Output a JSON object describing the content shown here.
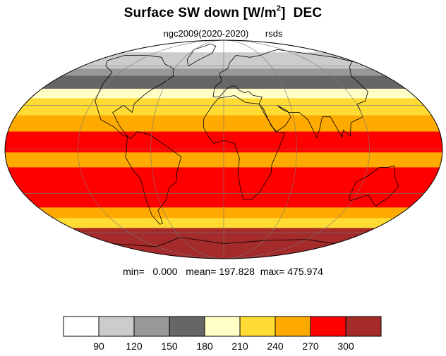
{
  "title": {
    "main": "Surface SW down [W/m",
    "sup": "2",
    "close": "]",
    "month": "DEC"
  },
  "subtitle": {
    "run": "ngc2009(2020-2020)",
    "variable": "rsds"
  },
  "stats": {
    "min_label": "min=",
    "min": "0.000",
    "mean_label": "mean=",
    "mean": "197.828",
    "max_label": "max=",
    "max": "475.974"
  },
  "colorbar": {
    "levels": [
      "90",
      "120",
      "150",
      "180",
      "210",
      "240",
      "270",
      "300"
    ],
    "colors": [
      "#ffffff",
      "#cccccc",
      "#999999",
      "#666666",
      "#ffffc6",
      "#ffdb33",
      "#ffaa00",
      "#ff0000",
      "#a52a2a"
    ]
  },
  "map": {
    "projection": "mollweide",
    "bands": [
      {
        "lat_from": 90,
        "lat_to": 73,
        "color": "#ffffff"
      },
      {
        "lat_from": 73,
        "lat_to": 58,
        "color": "#cccccc"
      },
      {
        "lat_from": 58,
        "lat_to": 52,
        "color": "#999999"
      },
      {
        "lat_from": 52,
        "lat_to": 42,
        "color": "#666666"
      },
      {
        "lat_from": 42,
        "lat_to": 35,
        "color": "#ffffc6"
      },
      {
        "lat_from": 35,
        "lat_to": 23,
        "color": "#ffdb33"
      },
      {
        "lat_from": 23,
        "lat_to": 12,
        "color": "#ffaa00"
      },
      {
        "lat_from": 12,
        "lat_to": -2,
        "color": "#ff0000"
      },
      {
        "lat_from": -2,
        "lat_to": -12,
        "color": "#ffaa00"
      },
      {
        "lat_from": -12,
        "lat_to": -40,
        "color": "#ff0000"
      },
      {
        "lat_from": -40,
        "lat_to": -48,
        "color": "#ffaa00"
      },
      {
        "lat_from": -48,
        "lat_to": -56,
        "color": "#ffdb33"
      },
      {
        "lat_from": -56,
        "lat_to": -90,
        "color": "#a52a2a"
      }
    ],
    "grid": {
      "lat_step": 30,
      "lon_step": 60,
      "on": true
    }
  }
}
